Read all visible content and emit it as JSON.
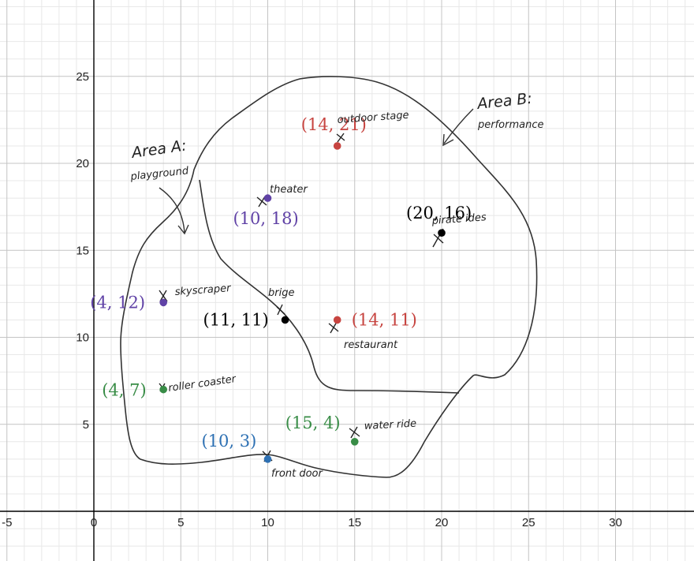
{
  "chart_data": {
    "type": "scatter",
    "xlim": [
      -5,
      35
    ],
    "ylim": [
      -3,
      29
    ],
    "grid": true,
    "x_ticks": [
      "-5",
      "0",
      "5",
      "10",
      "15",
      "20",
      "25",
      "30"
    ],
    "y_ticks": [
      "5",
      "10",
      "15",
      "20",
      "25"
    ],
    "points": [
      {
        "x": 14,
        "y": 21,
        "label": "(14, 21)",
        "color": "#c74440"
      },
      {
        "x": 10,
        "y": 18,
        "label": "(10, 18)",
        "color": "#6042a6"
      },
      {
        "x": 20,
        "y": 16,
        "label": "(20, 16)",
        "color": "#000000"
      },
      {
        "x": 4,
        "y": 12,
        "label": "(4, 12)",
        "color": "#6042a6"
      },
      {
        "x": 11,
        "y": 11,
        "label": "(11, 11)",
        "color": "#000000"
      },
      {
        "x": 14,
        "y": 11,
        "label": "(14, 11)",
        "color": "#c74440"
      },
      {
        "x": 4,
        "y": 7,
        "label": "(4, 7)",
        "color": "#388c46"
      },
      {
        "x": 15,
        "y": 4,
        "label": "(15, 4)",
        "color": "#388c46"
      },
      {
        "x": 10,
        "y": 3,
        "label": "(10, 3)",
        "color": "#2d70b3"
      }
    ],
    "annotations": {
      "area_a": "Area A:",
      "area_a_sub": "playground",
      "area_b": "Area B:",
      "area_b_sub": "performance",
      "outdoor_stage": "outdoor stage",
      "theater": "theater",
      "pirate_ides": "pirate ides",
      "skyscraper": "skyscraper",
      "bridge": "brige",
      "restaurant": "restaurant",
      "roller_coaster": "roller coaster",
      "water_ride": "water ride",
      "front_door": "front door"
    }
  }
}
